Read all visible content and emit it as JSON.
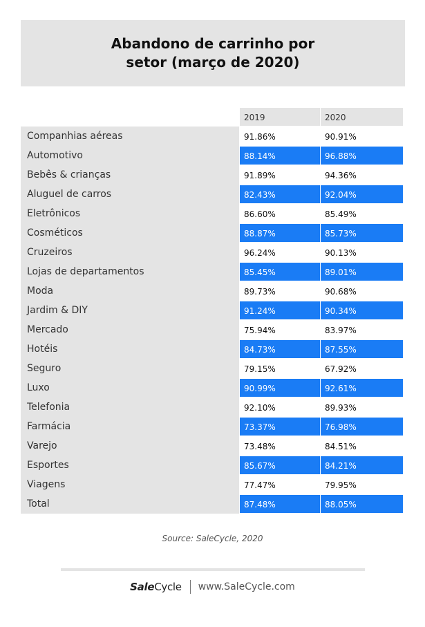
{
  "title_lines": [
    "Abandono de carrinho por",
    "setor (março de 2020)"
  ],
  "source": "Source: SaleCycle, 2020",
  "footer": {
    "logo_sale": "Sale",
    "logo_cycle": "Cycle",
    "site": "www.SaleCycle.com"
  },
  "colors": {
    "header_bg": "#e4e4e4",
    "label_bg": "#e4e4e4",
    "highlight": "#1a7cf5",
    "highlight_text": "#ffffff",
    "text": "#333333"
  },
  "chart_data": {
    "type": "table",
    "title": "Abandono de carrinho por setor (março de 2020)",
    "columns": [
      "2019",
      "2020"
    ],
    "rows": [
      {
        "label": "Companhias aéreas",
        "values": [
          "91.86%",
          "90.91%"
        ]
      },
      {
        "label": "Automotivo",
        "values": [
          "88.14%",
          "96.88%"
        ]
      },
      {
        "label": "Bebês & crianças",
        "values": [
          "91.89%",
          "94.36%"
        ]
      },
      {
        "label": "Aluguel de carros",
        "values": [
          "82.43%",
          "92.04%"
        ]
      },
      {
        "label": "Eletrônicos",
        "values": [
          "86.60%",
          "85.49%"
        ]
      },
      {
        "label": "Cosméticos",
        "values": [
          "88.87%",
          "85.73%"
        ]
      },
      {
        "label": "Cruzeiros",
        "values": [
          "96.24%",
          "90.13%"
        ]
      },
      {
        "label": "Lojas de departamentos",
        "values": [
          "85.45%",
          "89.01%"
        ]
      },
      {
        "label": "Moda",
        "values": [
          "89.73%",
          "90.68%"
        ]
      },
      {
        "label": "Jardim & DIY",
        "values": [
          "91.24%",
          "90.34%"
        ]
      },
      {
        "label": "Mercado",
        "values": [
          "75.94%",
          "83.97%"
        ]
      },
      {
        "label": "Hotéis",
        "values": [
          "84.73%",
          "87.55%"
        ]
      },
      {
        "label": "Seguro",
        "values": [
          "79.15%",
          "67.92%"
        ]
      },
      {
        "label": "Luxo",
        "values": [
          "90.99%",
          "92.61%"
        ]
      },
      {
        "label": "Telefonia",
        "values": [
          "92.10%",
          "89.93%"
        ]
      },
      {
        "label": "Farmácia",
        "values": [
          "73.37%",
          "76.98%"
        ]
      },
      {
        "label": "Varejo",
        "values": [
          "73.48%",
          "84.51%"
        ]
      },
      {
        "label": "Esportes",
        "values": [
          "85.67%",
          "84.21%"
        ]
      },
      {
        "label": "Viagens",
        "values": [
          "77.47%",
          "79.95%"
        ]
      },
      {
        "label": "Total",
        "values": [
          "87.48%",
          "88.05%"
        ]
      }
    ]
  }
}
